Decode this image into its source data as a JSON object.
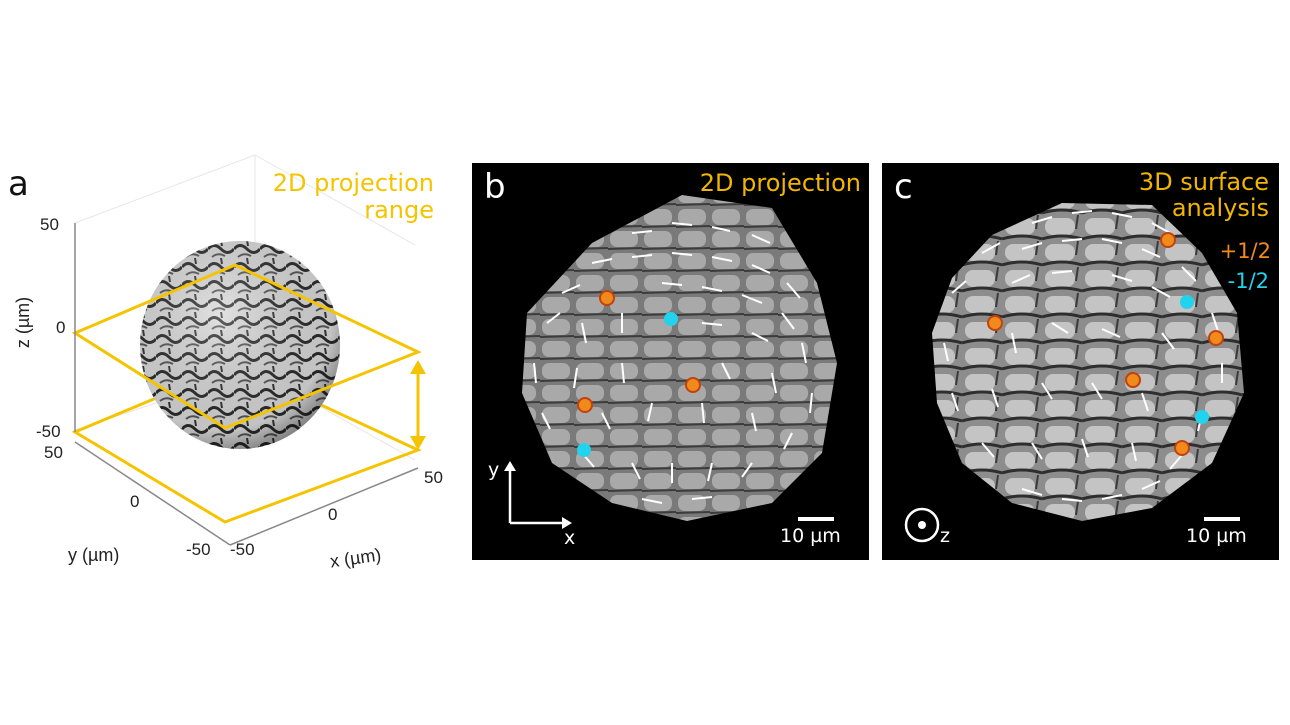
{
  "panel_a": {
    "letter": "a",
    "annotation_line1": "2D projection",
    "annotation_line2": "range",
    "z_axis_label": "z (µm)",
    "y_axis_label": "y (µm)",
    "x_axis_label": "x (µm)",
    "z_ticks": [
      "50",
      "0",
      "-50"
    ],
    "y_ticks": [
      "50",
      "0",
      "-50"
    ],
    "x_ticks": [
      "-50",
      "0",
      "50"
    ],
    "highlight_color": "#f5c400"
  },
  "panel_b": {
    "letter": "b",
    "title": "2D projection",
    "axis_y": "y",
    "axis_x": "x",
    "scalebar": "10 µm"
  },
  "panel_c": {
    "letter": "c",
    "title_line1": "3D surface",
    "title_line2": "analysis",
    "legend_plus": "+1/2",
    "legend_minus": "-1/2",
    "axis_z": "z",
    "scalebar": "10 µm"
  },
  "colors": {
    "plus_half_defect": "#f08a1c",
    "minus_half_defect": "#22d3ee",
    "panel_background": "#000000",
    "title_accent": "#f2b600"
  }
}
